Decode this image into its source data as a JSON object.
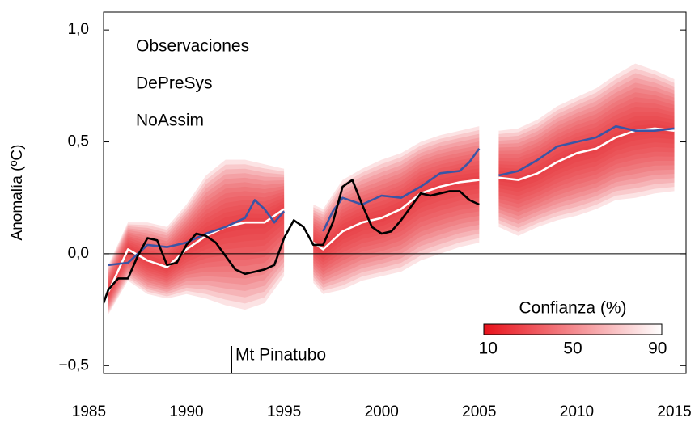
{
  "chart_data": {
    "type": "line",
    "y_label": "Anomalía (ºC)",
    "xlim": [
      1985.75,
      2015.6
    ],
    "ylim": [
      -0.535,
      1.08
    ],
    "xticks": [
      1985,
      1990,
      1995,
      2000,
      2005,
      2010,
      2015
    ],
    "yticks": [
      {
        "value": 1.0,
        "label": "1,0"
      },
      {
        "value": 0.5,
        "label": "0,5"
      },
      {
        "value": 0.0,
        "label": "0,0"
      },
      {
        "value": -0.5,
        "label": "−0,5"
      }
    ],
    "zero_line": true,
    "series": [
      {
        "name": "Observaciones",
        "color": "#000000",
        "x": [
          1985.75,
          1986,
          1986.5,
          1987,
          1987.5,
          1988,
          1988.5,
          1989,
          1989.5,
          1990,
          1990.5,
          1991,
          1991.5,
          1992,
          1992.5,
          1993,
          1993.5,
          1994,
          1994.5,
          1995,
          1995.5,
          1996,
          1996.5,
          1997,
          1997.5,
          1998,
          1998.5,
          1999,
          1999.5,
          2000,
          2000.5,
          2001,
          2001.5,
          2002,
          2002.5,
          2003,
          2003.5,
          2004,
          2004.5,
          2005
        ],
        "values": [
          -0.22,
          -0.16,
          -0.11,
          -0.11,
          -0.01,
          0.07,
          0.06,
          -0.05,
          -0.04,
          0.04,
          0.09,
          0.08,
          0.05,
          -0.01,
          -0.07,
          -0.09,
          -0.08,
          -0.07,
          -0.05,
          0.07,
          0.15,
          0.12,
          0.04,
          0.04,
          0.14,
          0.3,
          0.33,
          0.22,
          0.12,
          0.09,
          0.1,
          0.15,
          0.21,
          0.27,
          0.26,
          0.27,
          0.28,
          0.28,
          0.24,
          0.22
        ]
      },
      {
        "name": "DePreSys",
        "color": "#e8262b",
        "line_color": "#ffffff",
        "x": [
          1986,
          1987,
          1988,
          1989,
          1990,
          1991,
          1992,
          1993,
          1994,
          1995,
          1995.5,
          1996.5,
          1997,
          1998,
          1999,
          2000,
          2001,
          2002,
          2003,
          2004,
          2005,
          2005.5,
          2006,
          2007,
          2008,
          2009,
          2010,
          2011,
          2012,
          2013,
          2014,
          2015
        ],
        "values": [
          -0.17,
          0.02,
          -0.03,
          -0.06,
          0.02,
          0.08,
          0.12,
          0.14,
          0.14,
          0.2,
          null,
          0.05,
          0.02,
          0.1,
          0.14,
          0.16,
          0.2,
          0.27,
          0.3,
          0.32,
          0.33,
          null,
          0.34,
          0.33,
          0.36,
          0.41,
          0.45,
          0.47,
          0.52,
          0.55,
          0.56,
          0.55
        ],
        "lower": [
          -0.27,
          -0.12,
          -0.18,
          -0.2,
          -0.18,
          -0.2,
          -0.23,
          -0.25,
          -0.22,
          -0.1,
          null,
          -0.13,
          -0.18,
          -0.16,
          -0.12,
          -0.1,
          -0.08,
          -0.03,
          0.0,
          0.03,
          0.05,
          null,
          0.12,
          0.08,
          0.12,
          0.15,
          0.17,
          0.2,
          0.24,
          0.25,
          0.27,
          0.28
        ],
        "upper": [
          -0.05,
          0.14,
          0.14,
          0.12,
          0.22,
          0.35,
          0.42,
          0.42,
          0.4,
          0.38,
          null,
          0.22,
          0.2,
          0.33,
          0.38,
          0.42,
          0.45,
          0.5,
          0.53,
          0.55,
          0.57,
          null,
          0.55,
          0.56,
          0.6,
          0.66,
          0.7,
          0.74,
          0.8,
          0.85,
          0.82,
          0.78
        ]
      },
      {
        "name": "NoAssim",
        "color": "#3a55a5",
        "x": [
          1986,
          1987,
          1988,
          1989,
          1990,
          1991,
          1992,
          1993,
          1993.5,
          1994,
          1994.5,
          1995,
          1996,
          1997,
          1997.5,
          1998,
          1999,
          2000,
          2001,
          2002,
          2003,
          2004,
          2004.5,
          2005,
          2005.7,
          2006,
          2007,
          2008,
          2009,
          2010,
          2011,
          2012,
          2013,
          2014,
          2015
        ],
        "values": [
          -0.05,
          -0.04,
          0.04,
          0.03,
          0.05,
          0.09,
          0.12,
          0.16,
          0.24,
          0.2,
          0.14,
          0.19,
          null,
          0.1,
          0.19,
          0.25,
          0.22,
          0.26,
          0.25,
          0.3,
          0.36,
          0.37,
          0.41,
          0.47,
          null,
          0.35,
          0.37,
          0.42,
          0.48,
          0.5,
          0.52,
          0.57,
          0.55,
          0.55,
          0.56
        ]
      }
    ],
    "annotations": [
      {
        "text": "Mt Pinatubo",
        "x": 1992.3
      }
    ],
    "colorbar": {
      "title": "Confianza (%)",
      "lim": [
        8,
        92
      ],
      "ticks": [
        10,
        50,
        90
      ],
      "colors": [
        "#e8121b",
        "#ffffff"
      ]
    }
  }
}
